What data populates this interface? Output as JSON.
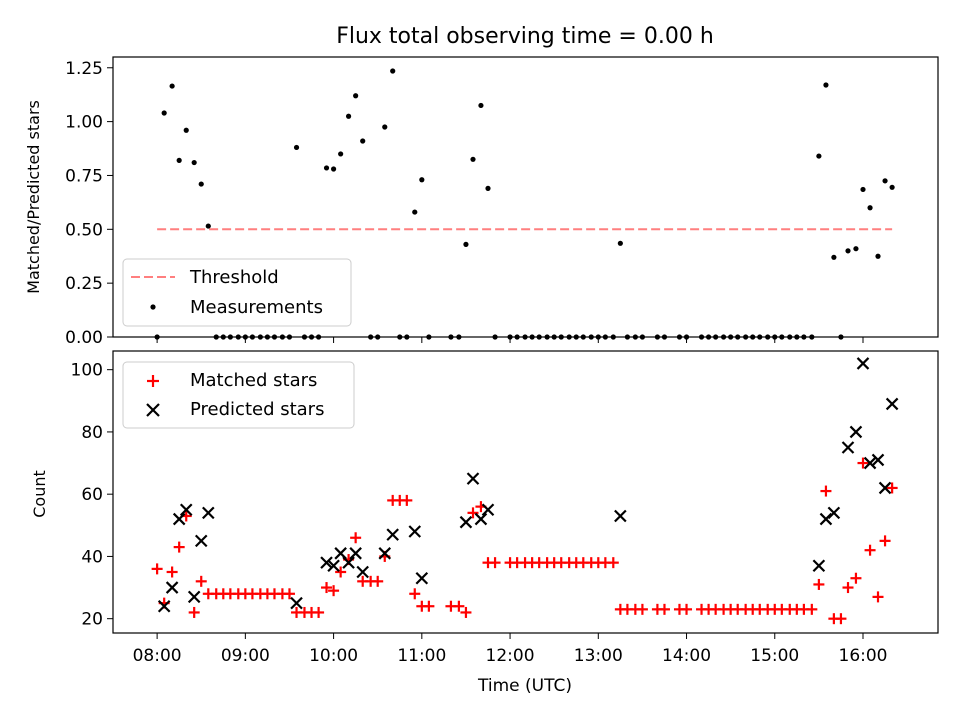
{
  "chart_data": [
    {
      "type": "scatter",
      "title": "Flux total observing time = 0.00 h",
      "ylabel": "Matched/Predicted stars",
      "xlabel": "",
      "xlim": [
        7.5,
        16.85
      ],
      "ylim": [
        0,
        1.3
      ],
      "yticks": [
        0,
        0.25,
        0.5,
        0.75,
        1.0,
        1.25
      ],
      "ytick_labels": [
        "0.00",
        "0.25",
        "0.50",
        "0.75",
        "1.00",
        "1.25"
      ],
      "threshold": {
        "name": "Threshold",
        "value": 0.5,
        "x": [
          8.0,
          16.33
        ],
        "color": "#ff7f7f"
      },
      "series": [
        {
          "name": "Measurements",
          "color": "#000000",
          "points": [
            [
              8.0,
              0
            ],
            [
              8.08,
              1.04
            ],
            [
              8.17,
              1.165
            ],
            [
              8.25,
              0.82
            ],
            [
              8.33,
              0.96
            ],
            [
              8.42,
              0.81
            ],
            [
              8.5,
              0.71
            ],
            [
              8.58,
              0.515
            ],
            [
              8.67,
              0
            ],
            [
              8.75,
              0
            ],
            [
              8.83,
              0
            ],
            [
              8.92,
              0
            ],
            [
              9.0,
              0
            ],
            [
              9.08,
              0
            ],
            [
              9.17,
              0
            ],
            [
              9.25,
              0
            ],
            [
              9.33,
              0
            ],
            [
              9.42,
              0
            ],
            [
              9.5,
              0
            ],
            [
              9.58,
              0.88
            ],
            [
              9.67,
              0
            ],
            [
              9.75,
              0
            ],
            [
              9.83,
              0
            ],
            [
              9.92,
              0.785
            ],
            [
              10.0,
              0.78
            ],
            [
              10.08,
              0.85
            ],
            [
              10.17,
              1.025
            ],
            [
              10.25,
              1.12
            ],
            [
              10.33,
              0.91
            ],
            [
              10.42,
              0
            ],
            [
              10.5,
              0
            ],
            [
              10.58,
              0.975
            ],
            [
              10.67,
              1.235
            ],
            [
              10.75,
              0
            ],
            [
              10.83,
              0
            ],
            [
              10.92,
              0.58
            ],
            [
              11.0,
              0.73
            ],
            [
              11.08,
              0
            ],
            [
              11.33,
              0
            ],
            [
              11.42,
              0
            ],
            [
              11.5,
              0.43
            ],
            [
              11.58,
              0.825
            ],
            [
              11.67,
              1.075
            ],
            [
              11.75,
              0.69
            ],
            [
              11.83,
              0
            ],
            [
              12.0,
              0
            ],
            [
              12.08,
              0
            ],
            [
              12.17,
              0
            ],
            [
              12.25,
              0
            ],
            [
              12.33,
              0
            ],
            [
              12.42,
              0
            ],
            [
              12.5,
              0
            ],
            [
              12.58,
              0
            ],
            [
              12.67,
              0
            ],
            [
              12.75,
              0
            ],
            [
              12.83,
              0
            ],
            [
              12.92,
              0
            ],
            [
              13.0,
              0
            ],
            [
              13.08,
              0
            ],
            [
              13.17,
              0
            ],
            [
              13.25,
              0.435
            ],
            [
              13.33,
              0
            ],
            [
              13.42,
              0
            ],
            [
              13.5,
              0
            ],
            [
              13.67,
              0
            ],
            [
              13.75,
              0
            ],
            [
              13.92,
              0
            ],
            [
              14.0,
              0
            ],
            [
              14.17,
              0
            ],
            [
              14.25,
              0
            ],
            [
              14.33,
              0
            ],
            [
              14.42,
              0
            ],
            [
              14.5,
              0
            ],
            [
              14.58,
              0
            ],
            [
              14.67,
              0
            ],
            [
              14.75,
              0
            ],
            [
              14.83,
              0
            ],
            [
              14.92,
              0
            ],
            [
              15.0,
              0
            ],
            [
              15.08,
              0
            ],
            [
              15.17,
              0
            ],
            [
              15.25,
              0
            ],
            [
              15.33,
              0
            ],
            [
              15.42,
              0
            ],
            [
              15.5,
              0.84
            ],
            [
              15.58,
              1.17
            ],
            [
              15.67,
              0.37
            ],
            [
              15.75,
              0
            ],
            [
              15.83,
              0.4
            ],
            [
              15.92,
              0.41
            ],
            [
              16.0,
              0.685
            ],
            [
              16.08,
              0.6
            ],
            [
              16.17,
              0.375
            ],
            [
              16.25,
              0.725
            ],
            [
              16.33,
              0.695
            ]
          ]
        }
      ],
      "legend": {
        "placement": "lower-left",
        "entries": [
          "Threshold",
          "Measurements"
        ]
      }
    },
    {
      "type": "scatter",
      "title": "",
      "ylabel": "Count",
      "xlabel": "Time (UTC)",
      "xlim": [
        7.5,
        16.85
      ],
      "ylim": [
        15.4,
        106
      ],
      "yticks": [
        20,
        40,
        60,
        80,
        100
      ],
      "ytick_labels": [
        "20",
        "40",
        "60",
        "80",
        "100"
      ],
      "xticks": [
        8,
        9,
        10,
        11,
        12,
        13,
        14,
        15,
        16
      ],
      "xtick_labels": [
        "08:00",
        "09:00",
        "10:00",
        "11:00",
        "12:00",
        "13:00",
        "14:00",
        "15:00",
        "16:00"
      ],
      "series": [
        {
          "name": "Matched stars",
          "marker": "+",
          "color": "#ff0000",
          "points": [
            [
              8.0,
              36
            ],
            [
              8.08,
              25
            ],
            [
              8.17,
              35
            ],
            [
              8.25,
              43
            ],
            [
              8.33,
              53
            ],
            [
              8.42,
              22
            ],
            [
              8.5,
              32
            ],
            [
              8.58,
              28
            ],
            [
              8.67,
              28
            ],
            [
              8.75,
              28
            ],
            [
              8.83,
              28
            ],
            [
              8.92,
              28
            ],
            [
              9.0,
              28
            ],
            [
              9.08,
              28
            ],
            [
              9.17,
              28
            ],
            [
              9.25,
              28
            ],
            [
              9.33,
              28
            ],
            [
              9.42,
              28
            ],
            [
              9.5,
              28
            ],
            [
              9.58,
              22
            ],
            [
              9.67,
              22
            ],
            [
              9.75,
              22
            ],
            [
              9.83,
              22
            ],
            [
              9.92,
              30
            ],
            [
              10.0,
              29
            ],
            [
              10.08,
              35
            ],
            [
              10.17,
              39
            ],
            [
              10.25,
              46
            ],
            [
              10.33,
              32
            ],
            [
              10.42,
              32
            ],
            [
              10.5,
              32
            ],
            [
              10.58,
              40
            ],
            [
              10.67,
              58
            ],
            [
              10.75,
              58
            ],
            [
              10.83,
              58
            ],
            [
              10.92,
              28
            ],
            [
              11.0,
              24
            ],
            [
              11.08,
              24
            ],
            [
              11.33,
              24
            ],
            [
              11.42,
              24
            ],
            [
              11.5,
              22
            ],
            [
              11.58,
              54
            ],
            [
              11.67,
              56
            ],
            [
              11.75,
              38
            ],
            [
              11.83,
              38
            ],
            [
              12.0,
              38
            ],
            [
              12.08,
              38
            ],
            [
              12.17,
              38
            ],
            [
              12.25,
              38
            ],
            [
              12.33,
              38
            ],
            [
              12.42,
              38
            ],
            [
              12.5,
              38
            ],
            [
              12.58,
              38
            ],
            [
              12.67,
              38
            ],
            [
              12.75,
              38
            ],
            [
              12.83,
              38
            ],
            [
              12.92,
              38
            ],
            [
              13.0,
              38
            ],
            [
              13.08,
              38
            ],
            [
              13.17,
              38
            ],
            [
              13.25,
              23
            ],
            [
              13.33,
              23
            ],
            [
              13.42,
              23
            ],
            [
              13.5,
              23
            ],
            [
              13.67,
              23
            ],
            [
              13.75,
              23
            ],
            [
              13.92,
              23
            ],
            [
              14.0,
              23
            ],
            [
              14.17,
              23
            ],
            [
              14.25,
              23
            ],
            [
              14.33,
              23
            ],
            [
              14.42,
              23
            ],
            [
              14.5,
              23
            ],
            [
              14.58,
              23
            ],
            [
              14.67,
              23
            ],
            [
              14.75,
              23
            ],
            [
              14.83,
              23
            ],
            [
              14.92,
              23
            ],
            [
              15.0,
              23
            ],
            [
              15.08,
              23
            ],
            [
              15.17,
              23
            ],
            [
              15.25,
              23
            ],
            [
              15.33,
              23
            ],
            [
              15.42,
              23
            ],
            [
              15.5,
              31
            ],
            [
              15.58,
              61
            ],
            [
              15.67,
              20
            ],
            [
              15.75,
              20
            ],
            [
              15.83,
              30
            ],
            [
              15.92,
              33
            ],
            [
              16.0,
              70
            ],
            [
              16.08,
              42
            ],
            [
              16.17,
              27
            ],
            [
              16.25,
              45
            ],
            [
              16.33,
              62
            ]
          ]
        },
        {
          "name": "Predicted stars",
          "marker": "x",
          "color": "#000000",
          "points": [
            [
              8.08,
              24
            ],
            [
              8.17,
              30
            ],
            [
              8.25,
              52
            ],
            [
              8.33,
              55
            ],
            [
              8.42,
              27
            ],
            [
              8.5,
              45
            ],
            [
              8.58,
              54
            ],
            [
              9.58,
              25
            ],
            [
              9.92,
              38
            ],
            [
              10.0,
              37
            ],
            [
              10.08,
              41
            ],
            [
              10.17,
              38
            ],
            [
              10.25,
              41
            ],
            [
              10.33,
              35
            ],
            [
              10.58,
              41
            ],
            [
              10.67,
              47
            ],
            [
              10.92,
              48
            ],
            [
              11.0,
              33
            ],
            [
              11.5,
              51
            ],
            [
              11.58,
              65
            ],
            [
              11.67,
              52
            ],
            [
              11.75,
              55
            ],
            [
              13.25,
              53
            ],
            [
              15.5,
              37
            ],
            [
              15.58,
              52
            ],
            [
              15.67,
              54
            ],
            [
              15.83,
              75
            ],
            [
              15.92,
              80
            ],
            [
              16.0,
              102
            ],
            [
              16.08,
              70
            ],
            [
              16.17,
              71
            ],
            [
              16.25,
              62
            ],
            [
              16.33,
              89
            ]
          ]
        }
      ],
      "legend": {
        "placement": "top-left",
        "entries": [
          "Matched stars",
          "Predicted stars"
        ]
      }
    }
  ]
}
